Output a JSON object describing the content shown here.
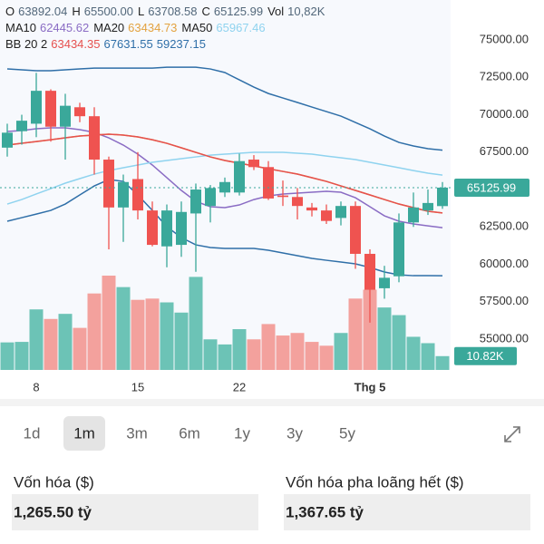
{
  "chart_data": {
    "type": "candlestick",
    "header": [
      [
        {
          "label": "O",
          "value": "63892.04"
        },
        {
          "label": "H",
          "value": "65500.00"
        },
        {
          "label": "L",
          "value": "63708.58"
        },
        {
          "label": "C",
          "value": "65125.99"
        },
        {
          "label": "Vol",
          "value": "10,82K"
        }
      ],
      [
        {
          "label": "MA10",
          "value": "62445.62",
          "color": "#8a6cc4"
        },
        {
          "label": "MA20",
          "value": "63434.73",
          "color": "#e3a23f"
        },
        {
          "label": "MA50",
          "value": "65967.46",
          "color": "#8fd3ef"
        }
      ],
      [
        {
          "label": "BB 20 2"
        },
        {
          "value": "63434.35",
          "color": "#e6504e"
        },
        {
          "value": "67631.55",
          "color": "#2f6fa8"
        },
        {
          "value": "59237.15",
          "color": "#2f6fa8"
        }
      ]
    ],
    "categories": [
      null,
      null,
      "8",
      null,
      null,
      null,
      null,
      null,
      null,
      "15",
      null,
      null,
      null,
      null,
      null,
      null,
      "22",
      null,
      null,
      null,
      null,
      null,
      null,
      null,
      null,
      "Thg 5",
      null,
      null,
      null,
      null,
      null
    ],
    "open": [
      67800,
      68900,
      69400,
      71600,
      69200,
      70500,
      69900,
      67000,
      63800,
      65700,
      63600,
      61200,
      61300,
      63400,
      63900,
      64800,
      64800,
      67000,
      66500,
      64600,
      64500,
      63800,
      63600,
      63100,
      63900,
      60700,
      58400,
      59200,
      62800,
      63600,
      63892.04
    ],
    "high": [
      69400,
      70000,
      72800,
      71700,
      71400,
      70800,
      70500,
      67200,
      66000,
      67500,
      64200,
      64000,
      64200,
      65400,
      65300,
      65800,
      67400,
      67300,
      66900,
      65600,
      65100,
      64100,
      64000,
      64200,
      64200,
      61000,
      59900,
      63400,
      64800,
      65000,
      65500
    ],
    "low": [
      67200,
      68000,
      68500,
      68200,
      67000,
      69500,
      66000,
      61000,
      61500,
      63000,
      61200,
      59800,
      60500,
      59500,
      62800,
      64500,
      64600,
      66300,
      64300,
      63900,
      63000,
      63200,
      62700,
      62600,
      59700,
      56100,
      57700,
      58800,
      62500,
      63300,
      63708.58
    ],
    "close": [
      68800,
      69600,
      71600,
      69200,
      70600,
      69900,
      67000,
      63800,
      65500,
      63600,
      61300,
      63600,
      63500,
      65000,
      65100,
      65500,
      66900,
      66500,
      64400,
      64500,
      63900,
      63600,
      62900,
      63900,
      60700,
      58300,
      59100,
      62800,
      63800,
      64100,
      65125.99
    ],
    "volume": [
      21.6,
      22,
      47.5,
      40,
      44,
      33,
      60,
      74,
      65,
      55,
      56,
      53,
      45,
      73,
      24,
      20,
      32,
      24,
      36,
      27,
      29,
      22,
      19,
      29,
      56,
      63,
      49,
      43,
      26,
      21,
      10.82
    ],
    "volume_last_label": "10.82K",
    "up_color": "#3aa89a",
    "down_color": "#ef5350",
    "volume_up_color": "#6cc3b6",
    "volume_down_color": "#f3a19d",
    "series": [
      {
        "name": "MA10",
        "color": "#8a6cc4",
        "values": [
          68880,
          68940,
          69060,
          69120,
          69120,
          69000,
          68820,
          68455,
          67970,
          67365,
          66640,
          65790,
          64940,
          64210,
          63850,
          63790,
          63970,
          64330,
          64570,
          64700,
          64760,
          64820,
          64880,
          64820,
          64450,
          63850,
          63240,
          62880,
          62700,
          62570,
          62445.62
        ]
      },
      {
        "name": "MA20",
        "color": "#e3a23f",
        "values": [
          67970,
          68090,
          68210,
          68330,
          68455,
          68575,
          68640,
          68700,
          68640,
          68515,
          68330,
          68090,
          67790,
          67485,
          67180,
          66940,
          66760,
          66580,
          66390,
          66210,
          66030,
          65790,
          65545,
          65240,
          64940,
          64640,
          64330,
          64030,
          63790,
          63545,
          63434.73
        ]
      },
      {
        "name": "MA50",
        "color": "#8fd3ef",
        "values": [
          64030,
          64330,
          64700,
          65060,
          65425,
          65730,
          66030,
          66270,
          66455,
          66640,
          66820,
          66940,
          67060,
          67180,
          67300,
          67365,
          67425,
          67485,
          67485,
          67485,
          67425,
          67365,
          67240,
          67120,
          67000,
          66820,
          66640,
          66455,
          66270,
          66090,
          65967.46
        ]
      },
      {
        "name": "BB middle",
        "color": "#e6504e",
        "values": [
          67970,
          68090,
          68210,
          68330,
          68455,
          68575,
          68640,
          68700,
          68640,
          68515,
          68330,
          68090,
          67790,
          67485,
          67180,
          66940,
          66760,
          66580,
          66390,
          66210,
          66030,
          65790,
          65545,
          65240,
          64940,
          64640,
          64330,
          64030,
          63790,
          63545,
          63434.35
        ]
      },
      {
        "name": "BB upper",
        "color": "#2f6fa8",
        "values": [
          73060,
          73000,
          72940,
          72940,
          73000,
          73060,
          73120,
          73120,
          73120,
          73120,
          73120,
          73180,
          73180,
          73180,
          73060,
          72820,
          72330,
          71850,
          71420,
          71120,
          70820,
          70515,
          70210,
          69910,
          69485,
          69060,
          68575,
          68150,
          67910,
          67730,
          67631.55
        ]
      },
      {
        "name": "BB lower",
        "color": "#2f6fa8",
        "values": [
          62880,
          63120,
          63360,
          63605,
          64030,
          64640,
          65240,
          65665,
          65545,
          64640,
          63605,
          62515,
          61790,
          61300,
          61120,
          61060,
          61060,
          61060,
          60940,
          60760,
          60575,
          60395,
          60270,
          60150,
          60030,
          59790,
          59485,
          59300,
          59240,
          59240,
          59237.15
        ]
      }
    ],
    "ylim": [
      52940,
      77670
    ],
    "yticks": [
      {
        "value": 55000,
        "label": "55000.00"
      },
      {
        "value": 57500,
        "label": "57500.00"
      },
      {
        "value": 60000,
        "label": "60000.00"
      },
      {
        "value": 62500,
        "label": "62500.00"
      },
      {
        "value": 65000,
        "label": "65000.00"
      },
      {
        "value": 67500,
        "label": "67500.00"
      },
      {
        "value": 70000,
        "label": "70000.00"
      },
      {
        "value": 72500,
        "label": "72500.00"
      },
      {
        "value": 75000,
        "label": "75000.00"
      }
    ],
    "grid": false,
    "periods": [
      "1d",
      "1m",
      "3m",
      "6m",
      "1y",
      "3y",
      "5y"
    ],
    "selected_period": 1,
    "stats": [
      {
        "label": "Vốn hóa ($)",
        "value": "1,265.50 tỷ"
      },
      {
        "label": "Vốn hóa pha loãng hết ($)",
        "value": "1,367.65 tỷ"
      }
    ]
  }
}
